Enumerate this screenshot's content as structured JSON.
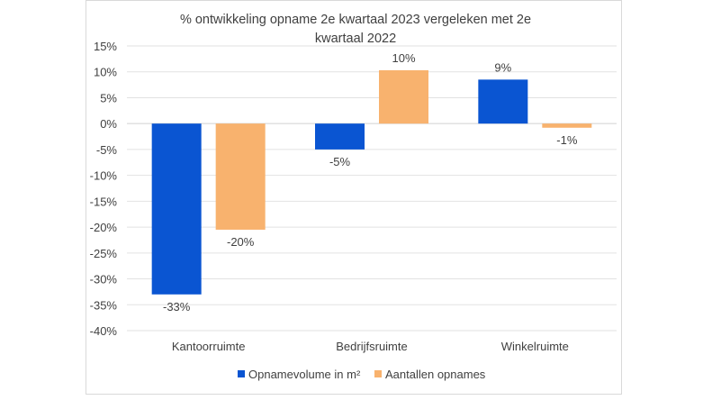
{
  "chart_data": {
    "type": "bar",
    "title": "% ontwikkeling opname 2e kwartaal 2023 vergeleken met 2e kwartaal 2022",
    "title_lines": [
      "% ontwikkeling opname 2e kwartaal 2023 vergeleken met 2e",
      "kwartaal 2022"
    ],
    "categories": [
      "Kantoorruimte",
      "Bedrijfsruimte",
      "Winkelruimte"
    ],
    "series": [
      {
        "name": "Opnamevolume in m²",
        "color": "#0a55d2",
        "values": [
          -33,
          -5,
          8.5
        ],
        "labels": [
          "-33%",
          "-5%",
          "9%"
        ]
      },
      {
        "name": "Aantallen opnames",
        "color": "#f8b26e",
        "values": [
          -20.5,
          10.3,
          -0.8
        ],
        "labels": [
          "-20%",
          "10%",
          "-1%"
        ]
      }
    ],
    "xlabel": "",
    "ylabel": "",
    "ylim": [
      -40,
      15
    ],
    "yticks": [
      15,
      10,
      5,
      0,
      -5,
      -10,
      -15,
      -20,
      -25,
      -30,
      -35,
      -40
    ],
    "ytick_labels": [
      "15%",
      "10%",
      "5%",
      "0%",
      "-5%",
      "-10%",
      "-15%",
      "-20%",
      "-25%",
      "-30%",
      "-35%",
      "-40%"
    ],
    "grid": true,
    "legend_position": "bottom"
  }
}
